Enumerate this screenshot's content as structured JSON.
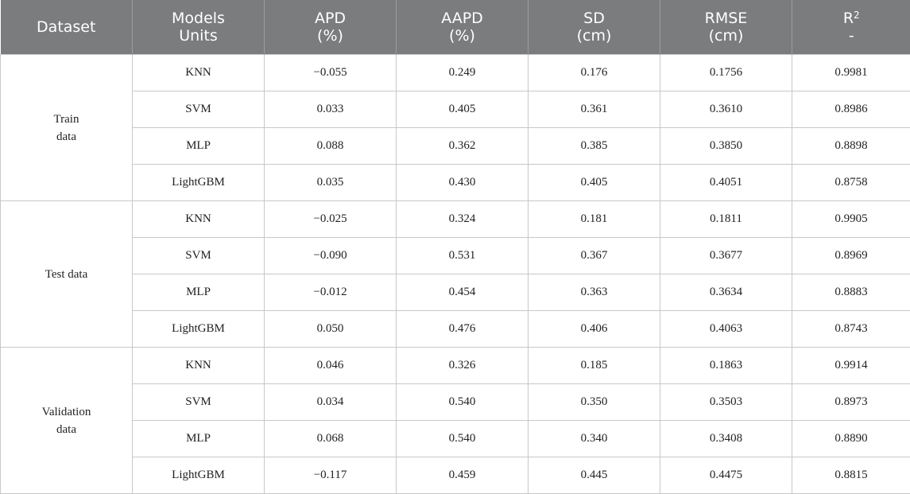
{
  "headers": [
    {
      "line1": "Dataset",
      "line2": ""
    },
    {
      "line1": "Models",
      "line2": "Units"
    },
    {
      "line1": "APD",
      "line2": "(%)"
    },
    {
      "line1": "AAPD",
      "line2": "(%)"
    },
    {
      "line1": "SD",
      "line2": "(cm)"
    },
    {
      "line1": "RMSE",
      "line2": "(cm)"
    },
    {
      "line1": "R",
      "sup": "2",
      "line2": "-"
    }
  ],
  "groups": [
    {
      "label_lines": [
        "Train",
        "data"
      ],
      "rows": [
        {
          "model": "KNN",
          "apd": "−0.055",
          "aapd": "0.249",
          "sd": "0.176",
          "rmse": "0.1756",
          "r2": "0.9981"
        },
        {
          "model": "SVM",
          "apd": "0.033",
          "aapd": "0.405",
          "sd": "0.361",
          "rmse": "0.3610",
          "r2": "0.8986"
        },
        {
          "model": "MLP",
          "apd": "0.088",
          "aapd": "0.362",
          "sd": "0.385",
          "rmse": "0.3850",
          "r2": "0.8898"
        },
        {
          "model": "LightGBM",
          "apd": "0.035",
          "aapd": "0.430",
          "sd": "0.405",
          "rmse": "0.4051",
          "r2": "0.8758"
        }
      ]
    },
    {
      "label_lines": [
        "Test data"
      ],
      "rows": [
        {
          "model": "KNN",
          "apd": "−0.025",
          "aapd": "0.324",
          "sd": "0.181",
          "rmse": "0.1811",
          "r2": "0.9905"
        },
        {
          "model": "SVM",
          "apd": "−0.090",
          "aapd": "0.531",
          "sd": "0.367",
          "rmse": "0.3677",
          "r2": "0.8969"
        },
        {
          "model": "MLP",
          "apd": "−0.012",
          "aapd": "0.454",
          "sd": "0.363",
          "rmse": "0.3634",
          "r2": "0.8883"
        },
        {
          "model": "LightGBM",
          "apd": "0.050",
          "aapd": "0.476",
          "sd": "0.406",
          "rmse": "0.4063",
          "r2": "0.8743"
        }
      ]
    },
    {
      "label_lines": [
        "Validation",
        "data"
      ],
      "rows": [
        {
          "model": "KNN",
          "apd": "0.046",
          "aapd": "0.326",
          "sd": "0.185",
          "rmse": "0.1863",
          "r2": "0.9914"
        },
        {
          "model": "SVM",
          "apd": "0.034",
          "aapd": "0.540",
          "sd": "0.350",
          "rmse": "0.3503",
          "r2": "0.8973"
        },
        {
          "model": "MLP",
          "apd": "0.068",
          "aapd": "0.540",
          "sd": "0.340",
          "rmse": "0.3408",
          "r2": "0.8890"
        },
        {
          "model": "LightGBM",
          "apd": "−0.117",
          "aapd": "0.459",
          "sd": "0.445",
          "rmse": "0.4475",
          "r2": "0.8815"
        }
      ]
    }
  ]
}
